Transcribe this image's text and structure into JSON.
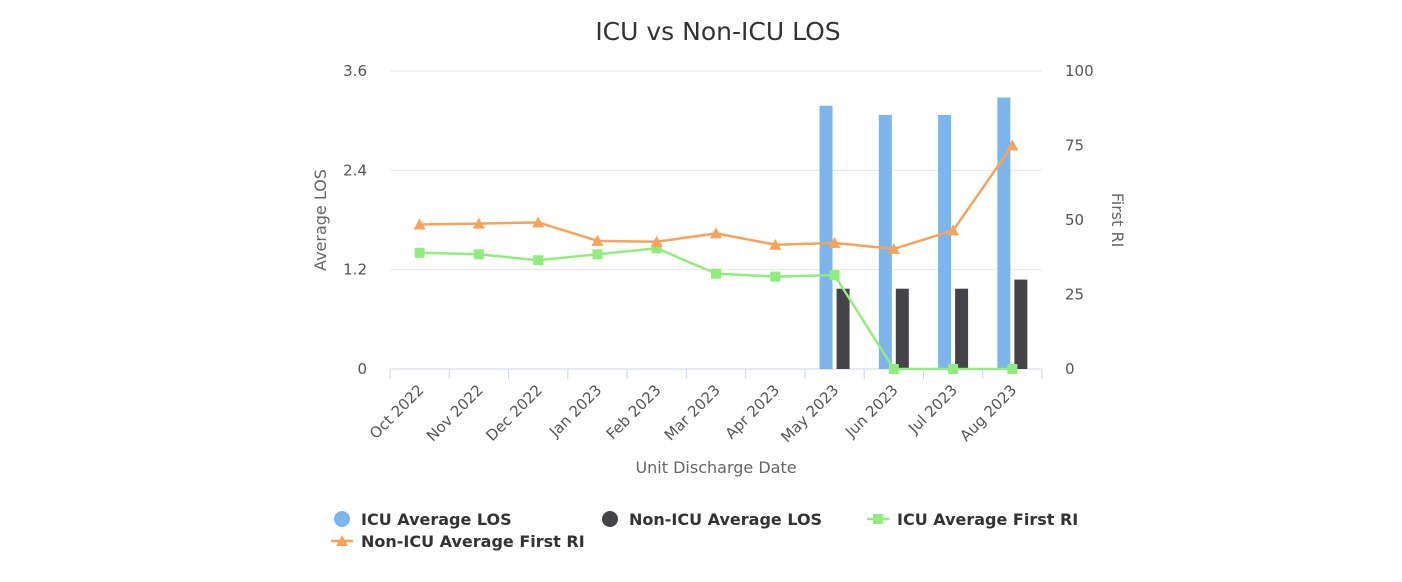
{
  "chart_data": {
    "type": "bar",
    "title": "ICU vs Non-ICU LOS",
    "xlabel": "Unit Discharge Date",
    "ylabel_left": "Average LOS",
    "ylabel_right": "First RI",
    "categories": [
      "Oct 2022",
      "Nov 2022",
      "Dec 2022",
      "Jan 2023",
      "Feb 2023",
      "Mar 2023",
      "Apr 2023",
      "May 2023",
      "Jun 2023",
      "Jul 2023",
      "Aug 2023"
    ],
    "ylim_left": [
      0,
      3.6
    ],
    "yticks_left": [
      "0",
      "1.2",
      "2.4",
      "3.6"
    ],
    "ylim_right": [
      0,
      100
    ],
    "yticks_right": [
      "0",
      "25",
      "50",
      "75",
      "100"
    ],
    "grid": true,
    "legend_placement": "bottom",
    "series": [
      {
        "name": "ICU Average LOS",
        "kind": "bar",
        "axis": "left",
        "color": "#7cb5ec",
        "values": [
          null,
          null,
          null,
          null,
          null,
          null,
          null,
          3.18,
          3.07,
          3.07,
          3.28
        ]
      },
      {
        "name": "Non-ICU Average LOS",
        "kind": "bar",
        "axis": "left",
        "color": "#434348",
        "values": [
          null,
          null,
          null,
          null,
          null,
          null,
          null,
          0.97,
          0.97,
          0.97,
          1.08
        ]
      },
      {
        "name": "ICU Average First RI",
        "kind": "line",
        "marker": "square",
        "axis": "right",
        "color": "#90ed7d",
        "values": [
          39,
          38.5,
          36.5,
          38.5,
          40.5,
          32,
          31,
          31.5,
          0,
          0,
          0
        ]
      },
      {
        "name": "Non-ICU Average First RI",
        "kind": "line",
        "marker": "triangle",
        "axis": "right",
        "color": "#f7a35c",
        "values": [
          48.5,
          48.8,
          49.2,
          43,
          42.7,
          45.5,
          41.7,
          42.3,
          40.3,
          46.5,
          75
        ]
      }
    ]
  }
}
